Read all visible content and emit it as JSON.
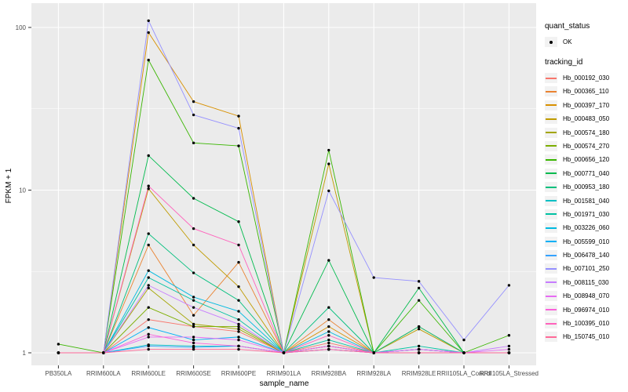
{
  "chart_data": {
    "type": "line",
    "title": "",
    "xlabel": "sample_name",
    "ylabel": "FPKM + 1",
    "y_scale": "log10",
    "ylim": [
      1,
      120
    ],
    "y_ticks": [
      1,
      10,
      100
    ],
    "y_minor_ticks": [
      3.1623,
      31.623
    ],
    "grid": "on",
    "legend_position": "right",
    "point_marker": "black-dot",
    "categories": [
      "PB350LA",
      "RRIM600LA",
      "RRIM600LE",
      "RRIM600SE",
      "RRIM600PE",
      "RRIM901LA",
      "RRIM928BA",
      "RRIM928LA",
      "RRIM928LE",
      "RRII105LA_Control",
      "RRII105LA_Stressed"
    ],
    "series": [
      {
        "name": "Hb_000192_030",
        "color": "#F8766D",
        "values": [
          1,
          1,
          1.6,
          1.45,
          1.35,
          1,
          1.15,
          1,
          1.05,
          1,
          1
        ]
      },
      {
        "name": "Hb_000365_110",
        "color": "#EA8331",
        "values": [
          1,
          1,
          4.6,
          1.7,
          3.6,
          1,
          1.6,
          1,
          1.05,
          1,
          1
        ]
      },
      {
        "name": "Hb_000397_170",
        "color": "#D89000",
        "values": [
          1,
          1,
          93,
          35,
          28.5,
          1,
          1.45,
          1,
          1.45,
          1,
          1
        ]
      },
      {
        "name": "Hb_000483_050",
        "color": "#C09B00",
        "values": [
          1,
          1,
          10.2,
          4.6,
          2.55,
          1,
          14.5,
          1,
          1.4,
          1,
          1
        ]
      },
      {
        "name": "Hb_000574_180",
        "color": "#A3A500",
        "values": [
          1,
          1,
          2.5,
          1.5,
          1.4,
          1,
          1.1,
          1,
          1,
          1,
          1
        ]
      },
      {
        "name": "Hb_000574_270",
        "color": "#7CAE00",
        "values": [
          1,
          1,
          1.9,
          1.45,
          1.45,
          1,
          1.1,
          1,
          1.05,
          1,
          1
        ]
      },
      {
        "name": "Hb_000656_120",
        "color": "#39B600",
        "values": [
          1.13,
          1,
          63,
          19.5,
          18.7,
          1,
          17.6,
          1,
          2.1,
          1,
          1.28
        ]
      },
      {
        "name": "Hb_000771_040",
        "color": "#00BB4E",
        "values": [
          1,
          1,
          16.3,
          8.9,
          6.4,
          1,
          3.7,
          1,
          2.5,
          1,
          1
        ]
      },
      {
        "name": "Hb_000953_180",
        "color": "#00BF7D",
        "values": [
          1,
          1,
          5.4,
          3.1,
          2.1,
          1,
          1.9,
          1,
          1.45,
          1,
          1
        ]
      },
      {
        "name": "Hb_001581_040",
        "color": "#00BFC4",
        "values": [
          1,
          1,
          1.12,
          1.1,
          1.1,
          1,
          1.05,
          1,
          1,
          1,
          1
        ]
      },
      {
        "name": "Hb_001971_030",
        "color": "#00C1A3",
        "values": [
          1,
          1,
          2.9,
          2.1,
          1.6,
          1,
          1.2,
          1,
          1.1,
          1,
          1
        ]
      },
      {
        "name": "Hb_003226_060",
        "color": "#00BAE0",
        "values": [
          1,
          1,
          3.2,
          2.2,
          1.8,
          1,
          1.35,
          1,
          1.05,
          1,
          1
        ]
      },
      {
        "name": "Hb_005599_010",
        "color": "#00B0F6",
        "values": [
          1,
          1,
          1.43,
          1.2,
          1.25,
          1,
          1.1,
          1,
          1.05,
          1,
          1
        ]
      },
      {
        "name": "Hb_006478_140",
        "color": "#35A2FF",
        "values": [
          1,
          1,
          1.1,
          1.08,
          1.1,
          1,
          1.05,
          1,
          1,
          1,
          1
        ]
      },
      {
        "name": "Hb_007101_250",
        "color": "#9590FF",
        "values": [
          1,
          1,
          110,
          29,
          24,
          1,
          9.9,
          2.9,
          2.75,
          1.2,
          2.6
        ]
      },
      {
        "name": "Hb_008115_030",
        "color": "#C77CFF",
        "values": [
          1,
          1,
          2.6,
          1.9,
          1.5,
          1,
          1.1,
          1,
          1.05,
          1,
          1.1
        ]
      },
      {
        "name": "Hb_008948_070",
        "color": "#E76BF3",
        "values": [
          1,
          1,
          1.25,
          1.25,
          1.2,
          1,
          1.05,
          1,
          1.05,
          1,
          1.05
        ]
      },
      {
        "name": "Hb_096974_010",
        "color": "#FA62DB",
        "values": [
          1,
          1,
          1.3,
          1.15,
          1.1,
          1,
          1.1,
          1,
          1,
          1,
          1
        ]
      },
      {
        "name": "Hb_100395_010",
        "color": "#FF62BC",
        "values": [
          1,
          1,
          10.6,
          5.8,
          4.6,
          1,
          1.28,
          1,
          1,
          1,
          1
        ]
      },
      {
        "name": "Hb_150745_010",
        "color": "#FF6A98",
        "values": [
          1,
          1,
          1.05,
          1.05,
          1.05,
          1,
          1.05,
          1,
          1,
          1,
          1
        ]
      }
    ]
  },
  "legend": {
    "quant_status": {
      "title": "quant_status",
      "ok_label": "OK"
    },
    "tracking_id": {
      "title": "tracking_id"
    }
  },
  "colors": {
    "panel_bg": "#EBEBEB",
    "grid": "#FFFFFF",
    "key_bg": "#F2F2F2",
    "tick_text": "#4D4D4D",
    "tick_mark": "#333333",
    "point": "#000000"
  }
}
